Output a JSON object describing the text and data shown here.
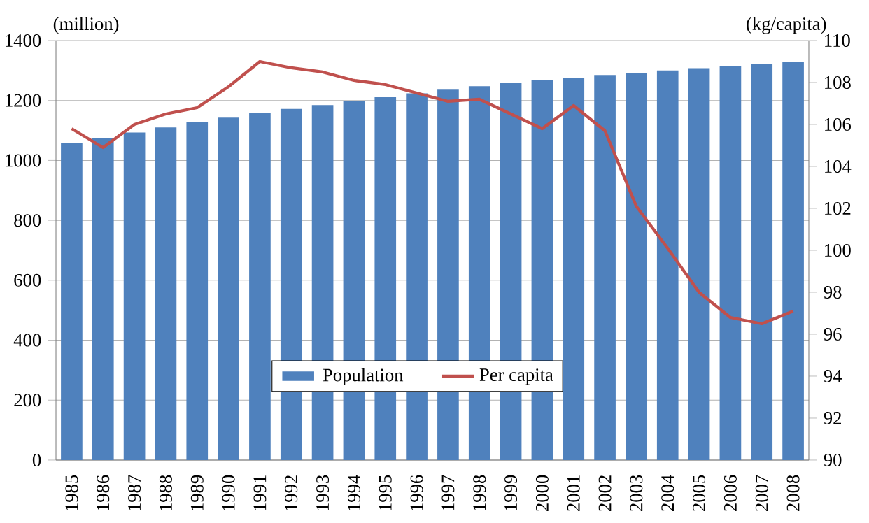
{
  "chart_data": {
    "type": "bar",
    "ylabel": "(million)",
    "y2label": "(kg/capita)",
    "categories": [
      "1985",
      "1986",
      "1987",
      "1988",
      "1989",
      "1990",
      "1991",
      "1992",
      "1993",
      "1994",
      "1995",
      "1996",
      "1997",
      "1998",
      "1999",
      "2000",
      "2001",
      "2002",
      "2003",
      "2004",
      "2005",
      "2006",
      "2007",
      "2008"
    ],
    "series": [
      {
        "name": "Population",
        "color": "#4f81bd",
        "values": [
          1058,
          1075,
          1093,
          1110,
          1127,
          1143,
          1158,
          1172,
          1185,
          1199,
          1211,
          1224,
          1236,
          1248,
          1258,
          1267,
          1276,
          1285,
          1292,
          1300,
          1308,
          1314,
          1321,
          1328
        ]
      },
      {
        "name": "Per capita",
        "type": "line",
        "axis": "y2",
        "color": "#c0504d",
        "values": [
          105.8,
          104.9,
          106.0,
          106.5,
          106.8,
          107.8,
          109.0,
          108.7,
          108.5,
          108.1,
          107.9,
          107.5,
          107.1,
          107.2,
          106.5,
          105.8,
          106.9,
          105.7,
          102.1,
          100.1,
          98.0,
          96.8,
          96.5,
          97.1
        ]
      }
    ],
    "ylim": [
      0,
      1400
    ],
    "yticks": [
      0,
      200,
      400,
      600,
      800,
      1000,
      1200,
      1400
    ],
    "y2lim": [
      90,
      110
    ],
    "y2ticks": [
      90,
      92,
      94,
      96,
      98,
      100,
      102,
      104,
      106,
      108,
      110
    ],
    "grid": "y",
    "legend": "bottom"
  }
}
